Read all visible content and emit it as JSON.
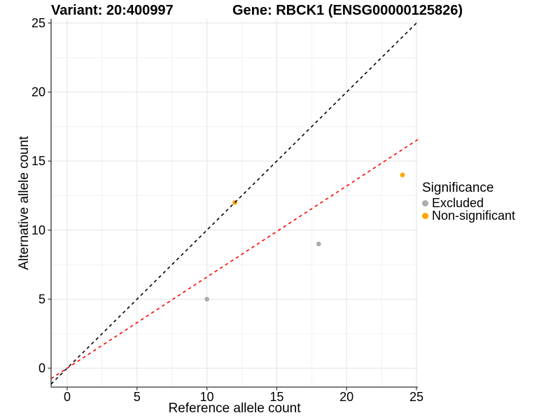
{
  "titles": {
    "variant": "Variant: 20:400997",
    "gene": "Gene: RBCK1 (ENSG00000125826)"
  },
  "legend": {
    "title": "Significance",
    "items": [
      {
        "label": "Excluded",
        "color": "#ACACAC"
      },
      {
        "label": "Non-significant",
        "color": "#FFA500"
      }
    ]
  },
  "chart_data": {
    "type": "scatter",
    "title_left": "Variant: 20:400997",
    "title_right": "Gene: RBCK1 (ENSG00000125826)",
    "xlabel": "Reference allele count",
    "ylabel": "Alternative allele count",
    "xlim": [
      -1.15,
      25.1
    ],
    "ylim": [
      -1.37,
      25.3
    ],
    "x_ticks": [
      0,
      5,
      10,
      15,
      20,
      25
    ],
    "y_ticks": [
      0,
      5,
      10,
      15,
      20,
      25
    ],
    "grid": {
      "show": true,
      "minor": true,
      "major_color": "#E3E3E3",
      "minor_color": "#F1F1F1"
    },
    "legend_position": "right",
    "series": [
      {
        "name": "Excluded",
        "color": "#ACACAC",
        "points": [
          [
            10,
            5
          ],
          [
            18,
            9
          ]
        ]
      },
      {
        "name": "Non-significant",
        "color": "#FFA500",
        "points": [
          [
            12,
            12
          ],
          [
            24,
            14
          ]
        ]
      }
    ],
    "abline": [
      {
        "name": "identity-line",
        "slope": 1,
        "intercept": 0,
        "color": "#000000",
        "style": "dashed"
      },
      {
        "name": "expected-ratio-line",
        "slope": 0.66,
        "intercept": 0,
        "color": "#FF0000",
        "style": "dashed"
      }
    ],
    "axis_color": "#333333",
    "tick_label_color": "#000000"
  }
}
